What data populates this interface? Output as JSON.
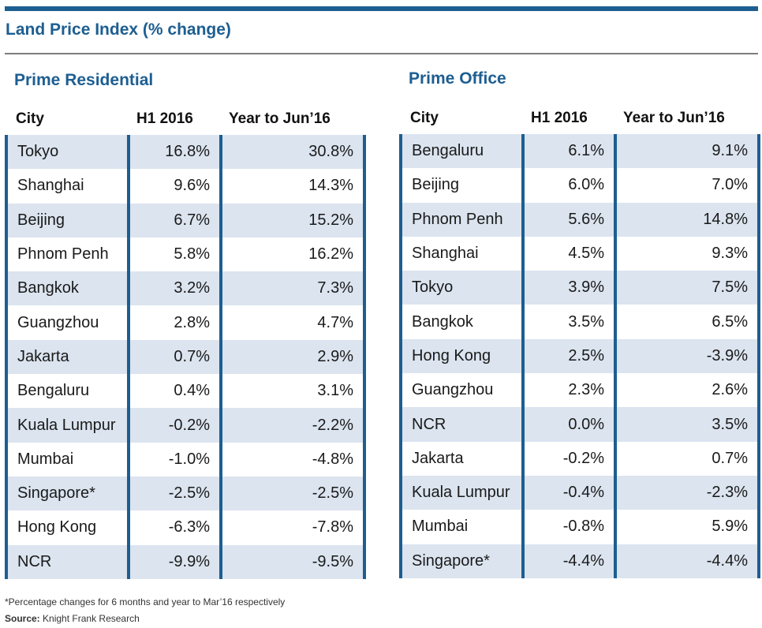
{
  "title": "Land Price Index (% change)",
  "footnote": "*Percentage changes for 6 months and year to Mar’16 respectively",
  "source_label": "Source:",
  "source_text": "Knight Frank Research",
  "chart_data": [
    {
      "type": "table",
      "title": "Prime Residential",
      "columns": [
        "City",
        "H1 2016",
        "Year to  Jun’16"
      ],
      "rows": [
        [
          "Tokyo",
          "16.8%",
          "30.8%"
        ],
        [
          "Shanghai",
          "9.6%",
          "14.3%"
        ],
        [
          "Beijing",
          "6.7%",
          "15.2%"
        ],
        [
          "Phnom Penh",
          "5.8%",
          "16.2%"
        ],
        [
          "Bangkok",
          "3.2%",
          "7.3%"
        ],
        [
          "Guangzhou",
          "2.8%",
          "4.7%"
        ],
        [
          "Jakarta",
          "0.7%",
          "2.9%"
        ],
        [
          "Bengaluru",
          "0.4%",
          "3.1%"
        ],
        [
          "Kuala Lumpur",
          "-0.2%",
          "-2.2%"
        ],
        [
          "Mumbai",
          "-1.0%",
          "-4.8%"
        ],
        [
          "Singapore*",
          "-2.5%",
          "-2.5%"
        ],
        [
          "Hong Kong",
          "-6.3%",
          "-7.8%"
        ],
        [
          "NCR",
          "-9.9%",
          "-9.5%"
        ]
      ]
    },
    {
      "type": "table",
      "title": "Prime Office",
      "columns": [
        "City",
        "H1 2016",
        "Year to  Jun’16"
      ],
      "rows": [
        [
          "Bengaluru",
          "6.1%",
          "9.1%"
        ],
        [
          "Beijing",
          "6.0%",
          "7.0%"
        ],
        [
          "Phnom Penh",
          "5.6%",
          "14.8%"
        ],
        [
          "Shanghai",
          "4.5%",
          "9.3%"
        ],
        [
          "Tokyo",
          "3.9%",
          "7.5%"
        ],
        [
          "Bangkok",
          "3.5%",
          "6.5%"
        ],
        [
          "Hong Kong",
          "2.5%",
          "-3.9%"
        ],
        [
          "Guangzhou",
          "2.3%",
          "2.6%"
        ],
        [
          "NCR",
          "0.0%",
          "3.5%"
        ],
        [
          "Jakarta",
          "-0.2%",
          "0.7%"
        ],
        [
          "Kuala Lumpur",
          "-0.4%",
          "-2.3%"
        ],
        [
          "Mumbai",
          "-0.8%",
          "5.9%"
        ],
        [
          "Singapore*",
          "-4.4%",
          "-4.4%"
        ]
      ]
    }
  ]
}
